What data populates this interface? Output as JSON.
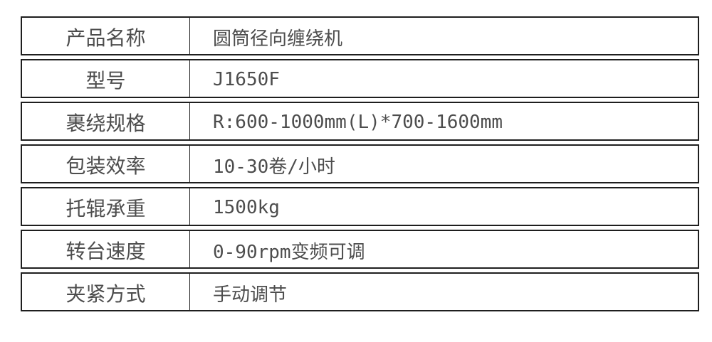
{
  "table": {
    "rows": [
      {
        "label": "产品名称",
        "value": "圆筒径向缠绕机"
      },
      {
        "label": "型号",
        "value": "J1650F"
      },
      {
        "label": "裹绕规格",
        "value": "R:600-1000mm(L)*700-1600mm"
      },
      {
        "label": "包装效率",
        "value": "10-30卷/小时"
      },
      {
        "label": "托辊承重",
        "value": "1500kg"
      },
      {
        "label": "转台速度",
        "value": "0-90rpm变频可调"
      },
      {
        "label": "夹紧方式",
        "value": "手动调节"
      }
    ],
    "colors": {
      "border": "#1e1e1e",
      "text": "#4d4d4d",
      "background": "#ffffff"
    }
  }
}
